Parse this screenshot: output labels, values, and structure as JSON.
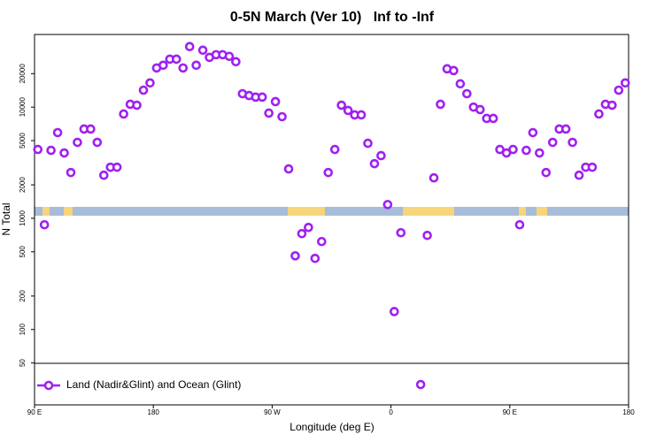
{
  "chart_data": {
    "type": "scatter",
    "title": "0-5N March (Ver 10)   Inf to -Inf",
    "x_label": "Longitude (deg E)",
    "y_label": "N Total",
    "log_y": true,
    "xlim": [
      90,
      540
    ],
    "xticks": [
      {
        "value": 90,
        "label": "90 E"
      },
      180,
      {
        "value": 270,
        "label": "90 W"
      },
      {
        "value": 360,
        "label": "0"
      },
      {
        "value": 450,
        "label": "90 E"
      },
      {
        "value": 540,
        "label": "180"
      }
    ],
    "ylim": [
      21,
      45000
    ],
    "yticks": [
      50,
      100,
      200,
      500,
      1000,
      2000,
      5000,
      10000,
      20000
    ],
    "legend": "bottom-left",
    "series": [
      {
        "name": "Land (Nadir&Glint) and Ocean (Glint)",
        "color": "#a020f0",
        "x": [
          92.5,
          97.5,
          102.5,
          107.5,
          112.5,
          117.5,
          122.5,
          127.5,
          132.5,
          137.5,
          142.5,
          147.5,
          152.5,
          157.5,
          162.5,
          167.5,
          172.5,
          177.5,
          182.5,
          187.5,
          192.5,
          197.5,
          202.5,
          207.5,
          212.5,
          217.5,
          222.5,
          227.5,
          232.5,
          237.5,
          242.5,
          247.5,
          252.5,
          257.5,
          262.5,
          267.5,
          272.5,
          277.5,
          282.5,
          287.5,
          292.5,
          297.5,
          302.5,
          307.5,
          312.5,
          317.5,
          322.5,
          327.5,
          332.5,
          337.5,
          342.5,
          347.5,
          352.5,
          357.5,
          362.5,
          367.5,
          382.5,
          387.5,
          392.5,
          397.5,
          402.5,
          407.5,
          412.5,
          417.5,
          422.5,
          427.5,
          432.5,
          437.5,
          442.5,
          447.5,
          452.5,
          457.5,
          462.5,
          467.5,
          472.5,
          477.5,
          482.5,
          487.5,
          492.5,
          497.5,
          502.5,
          507.5,
          512.5,
          517.5,
          522.5,
          527.5,
          532.5,
          537.5
        ],
        "values": [
          4160,
          875,
          4085,
          5900,
          3870,
          2580,
          4820,
          6350,
          6350,
          4820,
          2440,
          2880,
          2880,
          8670,
          10600,
          10400,
          14200,
          16500,
          22500,
          23800,
          27000,
          27000,
          22500,
          35000,
          23800,
          32500,
          28000,
          29600,
          29600,
          28600,
          25600,
          13200,
          12700,
          12300,
          12300,
          8830,
          11200,
          8200,
          2780,
          460,
          728,
          828,
          436,
          618,
          2580,
          4160,
          10400,
          9330,
          8510,
          8510,
          4730,
          3100,
          3660,
          1330,
          145,
          742,
          32,
          702,
          2310,
          10600,
          22100,
          21300,
          16200,
          13200,
          10000,
          9500,
          7910,
          7910,
          4160,
          3870,
          4160,
          875,
          4085,
          5900,
          3870,
          2580,
          4820,
          6350,
          6350,
          4820,
          2440,
          2880,
          2880,
          8670,
          10600,
          10400,
          14200,
          16500
        ]
      }
    ]
  }
}
